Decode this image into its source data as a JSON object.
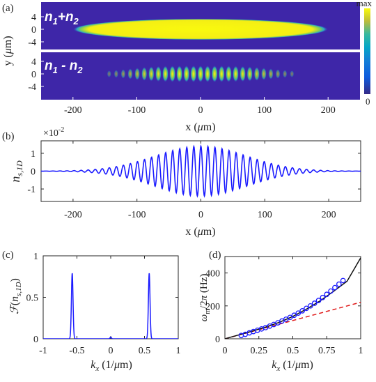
{
  "chart_data": [
    {
      "panel": "(a)",
      "type": "heatmap",
      "subpanels": [
        {
          "label": "n1+n2",
          "pattern": "uniform-ellipse",
          "x_extent": [
            -197,
            197
          ],
          "y_halfwidth": 1.6
        },
        {
          "label": "n1-n2",
          "pattern": "fringes",
          "fringe_wavevector": 0.57,
          "envelope_halfwidth": 190,
          "y_halfwidth": 1.2
        }
      ],
      "xlabel": "x (μm)",
      "ylabel": "y (μm)",
      "xlim": [
        -250,
        250
      ],
      "ylim": [
        -6,
        6
      ],
      "xticks": [
        "-200",
        "-100",
        "0",
        "100",
        "200"
      ],
      "yticks": [
        "4",
        "0",
        "-4"
      ],
      "colorbar": {
        "max_label": "max",
        "min_label": "0",
        "colormap": "parula"
      }
    },
    {
      "panel": "(b)",
      "type": "line",
      "ylabel": "n_{s,1D}",
      "xlabel": "x (μm)",
      "multiplier": "×10⁻²",
      "xlim": [
        -250,
        250
      ],
      "ylim": [
        -1.7,
        1.7
      ],
      "xticks": [
        "-200",
        "-100",
        "0",
        "100",
        "200"
      ],
      "yticks": [
        "1",
        "0",
        "-1"
      ],
      "series": [
        {
          "wavevector": 0.57,
          "amplitude": 1.4,
          "envelope_halfwidth": 195,
          "color": "#1a1aff"
        }
      ]
    },
    {
      "panel": "(c)",
      "type": "line",
      "ylabel": "ℱ(n_{s,1D})",
      "xlabel": "k_x (1/μm)",
      "xlim": [
        -1,
        1
      ],
      "ylim": [
        0,
        1
      ],
      "xticks": [
        "-1",
        "-0.5",
        "0",
        "0.5",
        "1"
      ],
      "yticks": [
        "1",
        "0.5",
        "0"
      ],
      "series": [
        {
          "peaks": [
            {
              "k": -0.57,
              "height": 0.79,
              "width": 0.012
            },
            {
              "k": 0.57,
              "height": 0.79,
              "width": 0.012
            },
            {
              "k": 0.0,
              "height": 0.02,
              "width": 0.01
            }
          ],
          "color": "#1a1aff"
        }
      ]
    },
    {
      "panel": "(d)",
      "type": "scatter",
      "ylabel": "ω_m/2π (Hz)",
      "xlabel": "k_x (1/μm)",
      "xlim": [
        0,
        1
      ],
      "ylim": [
        0,
        500
      ],
      "xticks": [
        "0",
        "0.25",
        "0.5",
        "0.75",
        "1"
      ],
      "yticks": [
        "400",
        "200",
        "0"
      ],
      "series": [
        {
          "kind": "markers",
          "color": "#1a1aff",
          "x": [
            0.12,
            0.15,
            0.18,
            0.21,
            0.24,
            0.27,
            0.3,
            0.33,
            0.36,
            0.39,
            0.42,
            0.45,
            0.48,
            0.51,
            0.54,
            0.57,
            0.6,
            0.63,
            0.66,
            0.69,
            0.72,
            0.75,
            0.78,
            0.81,
            0.84,
            0.87
          ],
          "y": [
            20,
            27,
            36,
            44,
            52,
            60,
            68,
            77,
            87,
            97,
            108,
            119,
            130,
            143,
            156,
            170,
            185,
            200,
            216,
            233,
            251,
            270,
            290,
            311,
            332,
            354
          ]
        },
        {
          "kind": "fit",
          "style": "solid",
          "color": "#111111",
          "x": [
            0,
            0.1,
            0.2,
            0.3,
            0.4,
            0.5,
            0.6,
            0.7,
            0.8,
            0.9,
            1.0
          ],
          "y": [
            0,
            23,
            46,
            71,
            100,
            136,
            180,
            230,
            288,
            350,
            492
          ]
        },
        {
          "kind": "linear",
          "style": "dashed",
          "color": "#e01a1a",
          "x": [
            0,
            1
          ],
          "y": [
            0,
            222
          ]
        }
      ]
    }
  ]
}
